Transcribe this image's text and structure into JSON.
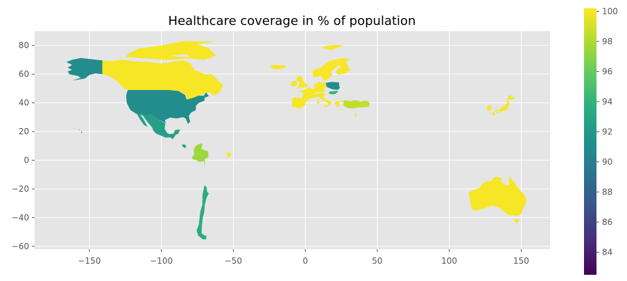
{
  "chart_data": {
    "type": "choropleth",
    "title": "Healthcare coverage in % of population",
    "xlim": [
      -188,
      170
    ],
    "ylim": [
      -62,
      90
    ],
    "x_ticks": [
      -150,
      -100,
      -50,
      0,
      50,
      100,
      150
    ],
    "x_tick_labels": [
      "−150",
      "−100",
      "−50",
      "0",
      "50",
      "100",
      "150"
    ],
    "y_ticks": [
      -60,
      -40,
      -20,
      0,
      20,
      40,
      60,
      80
    ],
    "y_tick_labels": [
      "−60",
      "−40",
      "−20",
      "0",
      "20",
      "40",
      "60",
      "80"
    ],
    "grid": true,
    "background": "#e5e5e5",
    "colormap": "viridis",
    "colorbar": {
      "min": 82.5,
      "max": 100.2,
      "ticks": [
        84,
        86,
        88,
        90,
        92,
        94,
        96,
        98,
        100
      ],
      "tick_labels": [
        "84",
        "86",
        "88",
        "90",
        "92",
        "94",
        "96",
        "98",
        "100"
      ]
    },
    "regions": [
      {
        "name": "Canada",
        "value": 100
      },
      {
        "name": "United States",
        "value": 91
      },
      {
        "name": "Mexico",
        "value": 92.5
      },
      {
        "name": "Costa Rica",
        "value": 93
      },
      {
        "name": "Colombia",
        "value": 97.5
      },
      {
        "name": "French Guiana",
        "value": 100
      },
      {
        "name": "Chile",
        "value": 93.5
      },
      {
        "name": "Iceland",
        "value": 100
      },
      {
        "name": "Norway",
        "value": 100
      },
      {
        "name": "Sweden",
        "value": 100
      },
      {
        "name": "Finland",
        "value": 100
      },
      {
        "name": "Svalbard",
        "value": 100
      },
      {
        "name": "Ireland",
        "value": 100
      },
      {
        "name": "United Kingdom",
        "value": 100
      },
      {
        "name": "France",
        "value": 100
      },
      {
        "name": "Spain",
        "value": 100
      },
      {
        "name": "Portugal",
        "value": 100
      },
      {
        "name": "Germany",
        "value": 100
      },
      {
        "name": "Italy",
        "value": 100
      },
      {
        "name": "Greece",
        "value": 100
      },
      {
        "name": "Poland",
        "value": 91
      },
      {
        "name": "Hungary",
        "value": 94
      },
      {
        "name": "Turkey",
        "value": 98.5
      },
      {
        "name": "Israel",
        "value": 100
      },
      {
        "name": "South Korea",
        "value": 100
      },
      {
        "name": "Japan",
        "value": 100
      },
      {
        "name": "Australia",
        "value": 100
      }
    ]
  }
}
